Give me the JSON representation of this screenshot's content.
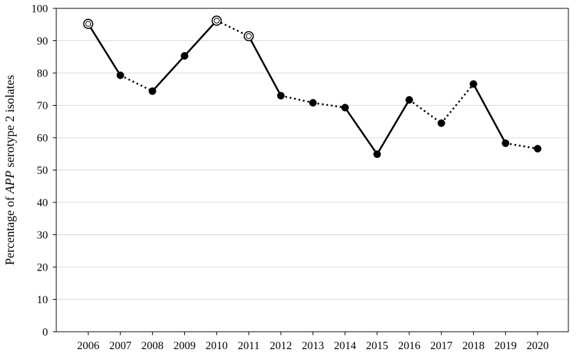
{
  "chart_data": {
    "type": "line",
    "title": "",
    "xlabel": "",
    "ylabel": {
      "prefix": "Percentage of ",
      "italic": "APP",
      "suffix": " serotype 2 isolates"
    },
    "categories": [
      "2006",
      "2007",
      "2008",
      "2009",
      "2010",
      "2011",
      "2012",
      "2013",
      "2014",
      "2015",
      "2016",
      "2017",
      "2018",
      "2019",
      "2020"
    ],
    "values": [
      95.2,
      79.3,
      74.4,
      85.3,
      96.2,
      91.4,
      73.0,
      70.8,
      69.3,
      54.9,
      71.7,
      64.5,
      76.6,
      58.3,
      56.6
    ],
    "highlighted_points": [
      "2006",
      "2010",
      "2011"
    ],
    "segment_styles": [
      "solid",
      "dotted",
      "solid",
      "solid",
      "dotted",
      "solid",
      "dotted",
      "dotted",
      "solid",
      "solid",
      "dotted",
      "dotted",
      "solid",
      "dotted"
    ],
    "ylim": [
      0,
      100
    ],
    "yticks": [
      0,
      10,
      20,
      30,
      40,
      50,
      60,
      70,
      80,
      90,
      100
    ],
    "grid": true,
    "legend": "none",
    "colors": {
      "line": "#000000",
      "marker": "#000000",
      "grid": "#d9d9d9",
      "axis": "#000000"
    }
  }
}
